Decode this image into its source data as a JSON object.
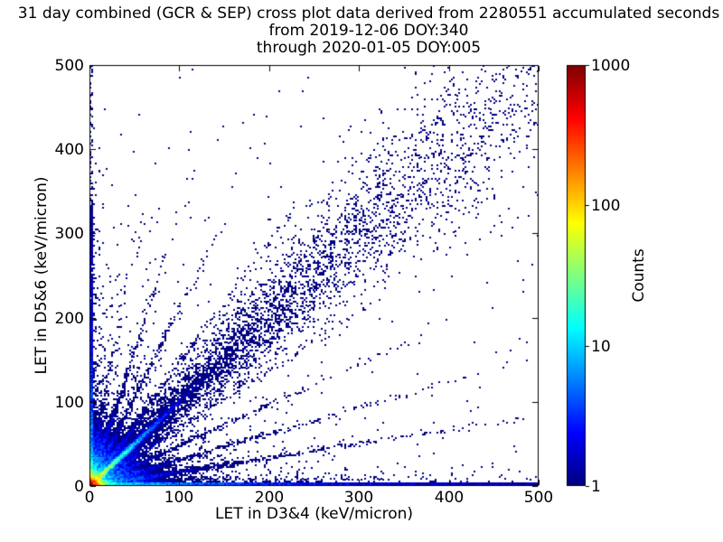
{
  "figure": {
    "title_lines": [
      "31 day combined (GCR & SEP) cross plot data derived from 2280551 accumulated seconds",
      "from 2019-12-06 DOY:340",
      "through 2020-01-05 DOY:005"
    ],
    "accumulated_seconds": 2280551,
    "date_from": "2019-12-06 DOY:340",
    "date_through": "2020-01-05 DOY:005",
    "background_color": "#ffffff"
  },
  "chart_data": {
    "type": "heatmap",
    "subtype": "2d-histogram-cross-plot",
    "title": "31 day combined (GCR & SEP) cross plot data derived from 2280551 accumulated seconds from 2019-12-06 DOY:340 through 2020-01-05 DOY:005",
    "xlabel": "LET in D3&4 (keV/micron)",
    "ylabel": "LET in D5&6 (keV/micron)",
    "xlim": [
      0,
      500
    ],
    "ylim": [
      0,
      500
    ],
    "xticks": [
      0,
      100,
      200,
      300,
      400,
      500
    ],
    "yticks": [
      0,
      100,
      200,
      300,
      400,
      500
    ],
    "grid": false,
    "colorbar": {
      "label": "Counts",
      "scale": "log",
      "vmin": 1,
      "vmax": 1000,
      "ticks": [
        1,
        10,
        100,
        1000
      ],
      "colormap": "jet",
      "single_count_color": "#000080",
      "max_count_color": "#800000"
    },
    "features": {
      "hot_core": "dense red/orange/yellow peak (~1000 counts) at origin within ~15 keV/micron of (0,0)",
      "identity_streak": "bright cyan-green streak along y=x from origin fading to blue by ~(80,80)",
      "diagonal_band": "diffuse navy correlation band along y=x widening out to ~(450,450)",
      "bottom_band": "dense navy band hugging y=0 across full x range 0-500",
      "left_band": "dense navy column hugging x=0 up to y~350, sparse to 500",
      "radial_streaks": "faint rays fanning out from origin above and below the diagonal",
      "far_field": "sparse single-count navy speckle, nearly empty in upper-right corner"
    },
    "model": {
      "seed": 20191206,
      "bin_units": 2,
      "log_vmax": 3,
      "core": {
        "amp": 1500,
        "scale": 4.5
      },
      "corner_cloud": [
        {
          "amp": 18,
          "scale": 22
        },
        {
          "amp": 1.2,
          "scale": 45
        },
        {
          "amp": 0.35,
          "scale": 90
        }
      ],
      "bottom_band": {
        "width": 4,
        "amp": 6,
        "scale": 120,
        "base": 1.25,
        "halo_amp": 2.5,
        "halo_y": 7,
        "halo_x": 160
      },
      "left_band": {
        "width": 4,
        "amp": 5,
        "scale": 90,
        "base": 0.95,
        "base_ymax": 335,
        "base_above": 0.3,
        "halo_amp": 2.0,
        "halo_x": 6,
        "halo_y": 130
      },
      "diag_streak": {
        "amp": 90,
        "cross_sigma2": 10,
        "scale": 22
      },
      "diag_band": {
        "amp": 1.5,
        "sigma0": 5,
        "sigma_slope": 0.13,
        "scale": 170
      },
      "rays": [
        {
          "slope": 6.0,
          "amp": 2.2,
          "len": 70
        },
        {
          "slope": 3.2,
          "amp": 2.4,
          "len": 95
        },
        {
          "slope": 2.1,
          "amp": 2.0,
          "len": 115
        },
        {
          "slope": 1.45,
          "amp": 1.6,
          "len": 115
        },
        {
          "slope": 0.69,
          "amp": 1.6,
          "len": 115
        },
        {
          "slope": 0.48,
          "amp": 2.0,
          "len": 115
        },
        {
          "slope": 0.31,
          "amp": 2.2,
          "len": 130
        },
        {
          "slope": 0.167,
          "amp": 2.4,
          "len": 150
        }
      ],
      "uniform": 0.0015
    }
  }
}
